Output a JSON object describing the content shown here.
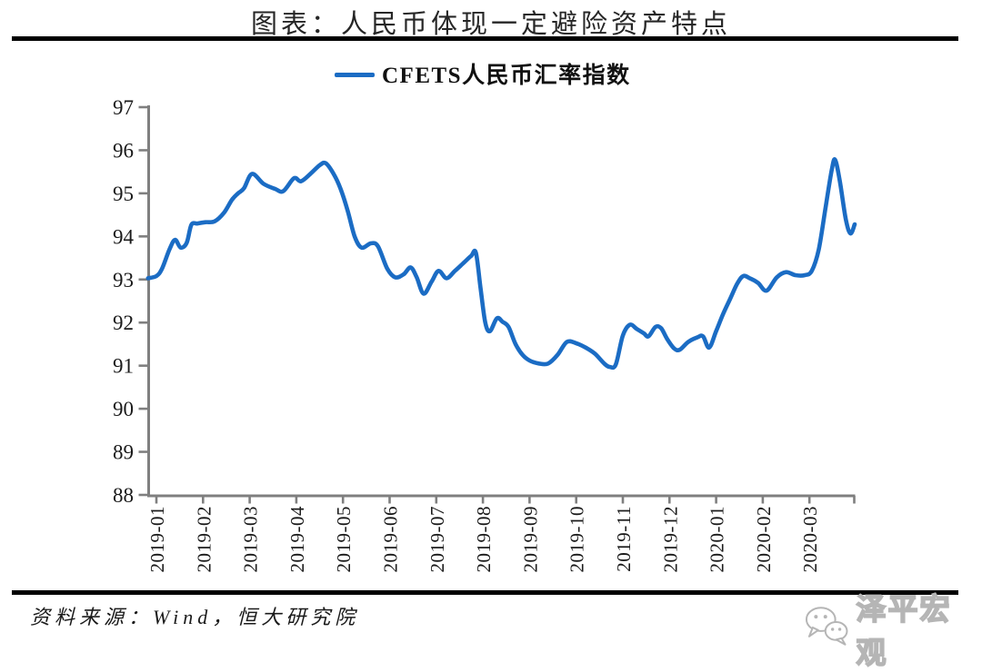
{
  "page": {
    "title": "图表：人民币体现一定避险资产特点",
    "source_note": "资料来源：Wind，恒大研究院",
    "watermark": {
      "text": "泽平宏观",
      "icon": "wechat-icon"
    }
  },
  "colors": {
    "line_blue": "#1B6CC4",
    "axis_gray": "#7F7F7F",
    "rule_black": "#000000",
    "watermark_gray": "#B5B5B5"
  },
  "chart_data": {
    "type": "line",
    "title": "CFETS人民币汇率指数",
    "legend": [
      {
        "label": "CFETS人民币汇率指数",
        "color": "#1B6CC4"
      }
    ],
    "legend_position": "top-center",
    "grid": false,
    "ylim": [
      88,
      97
    ],
    "y_ticks": [
      88,
      89,
      90,
      91,
      92,
      93,
      94,
      95,
      96,
      97
    ],
    "x_tick_labels": [
      "2019-01",
      "2019-02",
      "2019-03",
      "2019-04",
      "2019-05",
      "2019-06",
      "2019-07",
      "2019-08",
      "2019-09",
      "2019-10",
      "2019-11",
      "2019-12",
      "2020-01",
      "2020-02",
      "2020-03"
    ],
    "x_unit": "months (0 = 2019-01 tick)",
    "x_range_months": [
      -0.18,
      14.97
    ],
    "series": [
      {
        "name": "CFETS人民币汇率指数",
        "color": "#1B6CC4",
        "points": [
          [
            -0.18,
            93.03
          ],
          [
            0.0,
            93.08
          ],
          [
            0.12,
            93.25
          ],
          [
            0.28,
            93.7
          ],
          [
            0.4,
            93.92
          ],
          [
            0.52,
            93.74
          ],
          [
            0.65,
            93.85
          ],
          [
            0.75,
            94.27
          ],
          [
            0.88,
            94.3
          ],
          [
            1.05,
            94.33
          ],
          [
            1.25,
            94.35
          ],
          [
            1.45,
            94.55
          ],
          [
            1.62,
            94.85
          ],
          [
            1.75,
            95.0
          ],
          [
            1.88,
            95.12
          ],
          [
            2.05,
            95.45
          ],
          [
            2.3,
            95.22
          ],
          [
            2.55,
            95.1
          ],
          [
            2.72,
            95.05
          ],
          [
            2.95,
            95.35
          ],
          [
            3.1,
            95.28
          ],
          [
            3.3,
            95.45
          ],
          [
            3.5,
            95.65
          ],
          [
            3.63,
            95.7
          ],
          [
            3.8,
            95.45
          ],
          [
            3.95,
            95.1
          ],
          [
            4.1,
            94.6
          ],
          [
            4.25,
            94.0
          ],
          [
            4.4,
            93.74
          ],
          [
            4.6,
            93.84
          ],
          [
            4.75,
            93.77
          ],
          [
            4.95,
            93.25
          ],
          [
            5.12,
            93.05
          ],
          [
            5.3,
            93.12
          ],
          [
            5.45,
            93.28
          ],
          [
            5.58,
            93.05
          ],
          [
            5.73,
            92.67
          ],
          [
            5.9,
            92.95
          ],
          [
            6.05,
            93.2
          ],
          [
            6.22,
            93.03
          ],
          [
            6.4,
            93.2
          ],
          [
            6.6,
            93.4
          ],
          [
            6.75,
            93.55
          ],
          [
            6.85,
            93.62
          ],
          [
            6.95,
            92.8
          ],
          [
            7.05,
            92.0
          ],
          [
            7.15,
            91.8
          ],
          [
            7.3,
            92.1
          ],
          [
            7.42,
            92.02
          ],
          [
            7.55,
            91.9
          ],
          [
            7.7,
            91.5
          ],
          [
            7.85,
            91.25
          ],
          [
            8.0,
            91.12
          ],
          [
            8.2,
            91.05
          ],
          [
            8.4,
            91.05
          ],
          [
            8.6,
            91.25
          ],
          [
            8.8,
            91.55
          ],
          [
            9.0,
            91.52
          ],
          [
            9.2,
            91.42
          ],
          [
            9.4,
            91.28
          ],
          [
            9.6,
            91.05
          ],
          [
            9.72,
            90.97
          ],
          [
            9.85,
            91.03
          ],
          [
            10.0,
            91.7
          ],
          [
            10.15,
            91.95
          ],
          [
            10.3,
            91.85
          ],
          [
            10.45,
            91.75
          ],
          [
            10.55,
            91.68
          ],
          [
            10.7,
            91.9
          ],
          [
            10.82,
            91.87
          ],
          [
            10.95,
            91.62
          ],
          [
            11.1,
            91.4
          ],
          [
            11.22,
            91.37
          ],
          [
            11.4,
            91.55
          ],
          [
            11.6,
            91.66
          ],
          [
            11.72,
            91.68
          ],
          [
            11.85,
            91.42
          ],
          [
            12.0,
            91.8
          ],
          [
            12.15,
            92.2
          ],
          [
            12.3,
            92.55
          ],
          [
            12.45,
            92.9
          ],
          [
            12.58,
            93.08
          ],
          [
            12.72,
            93.03
          ],
          [
            12.9,
            92.92
          ],
          [
            13.08,
            92.74
          ],
          [
            13.3,
            93.05
          ],
          [
            13.5,
            93.17
          ],
          [
            13.7,
            93.1
          ],
          [
            13.9,
            93.1
          ],
          [
            14.05,
            93.2
          ],
          [
            14.2,
            93.7
          ],
          [
            14.35,
            94.7
          ],
          [
            14.48,
            95.55
          ],
          [
            14.55,
            95.78
          ],
          [
            14.65,
            95.3
          ],
          [
            14.78,
            94.4
          ],
          [
            14.88,
            94.07
          ],
          [
            14.97,
            94.28
          ]
        ]
      }
    ]
  }
}
